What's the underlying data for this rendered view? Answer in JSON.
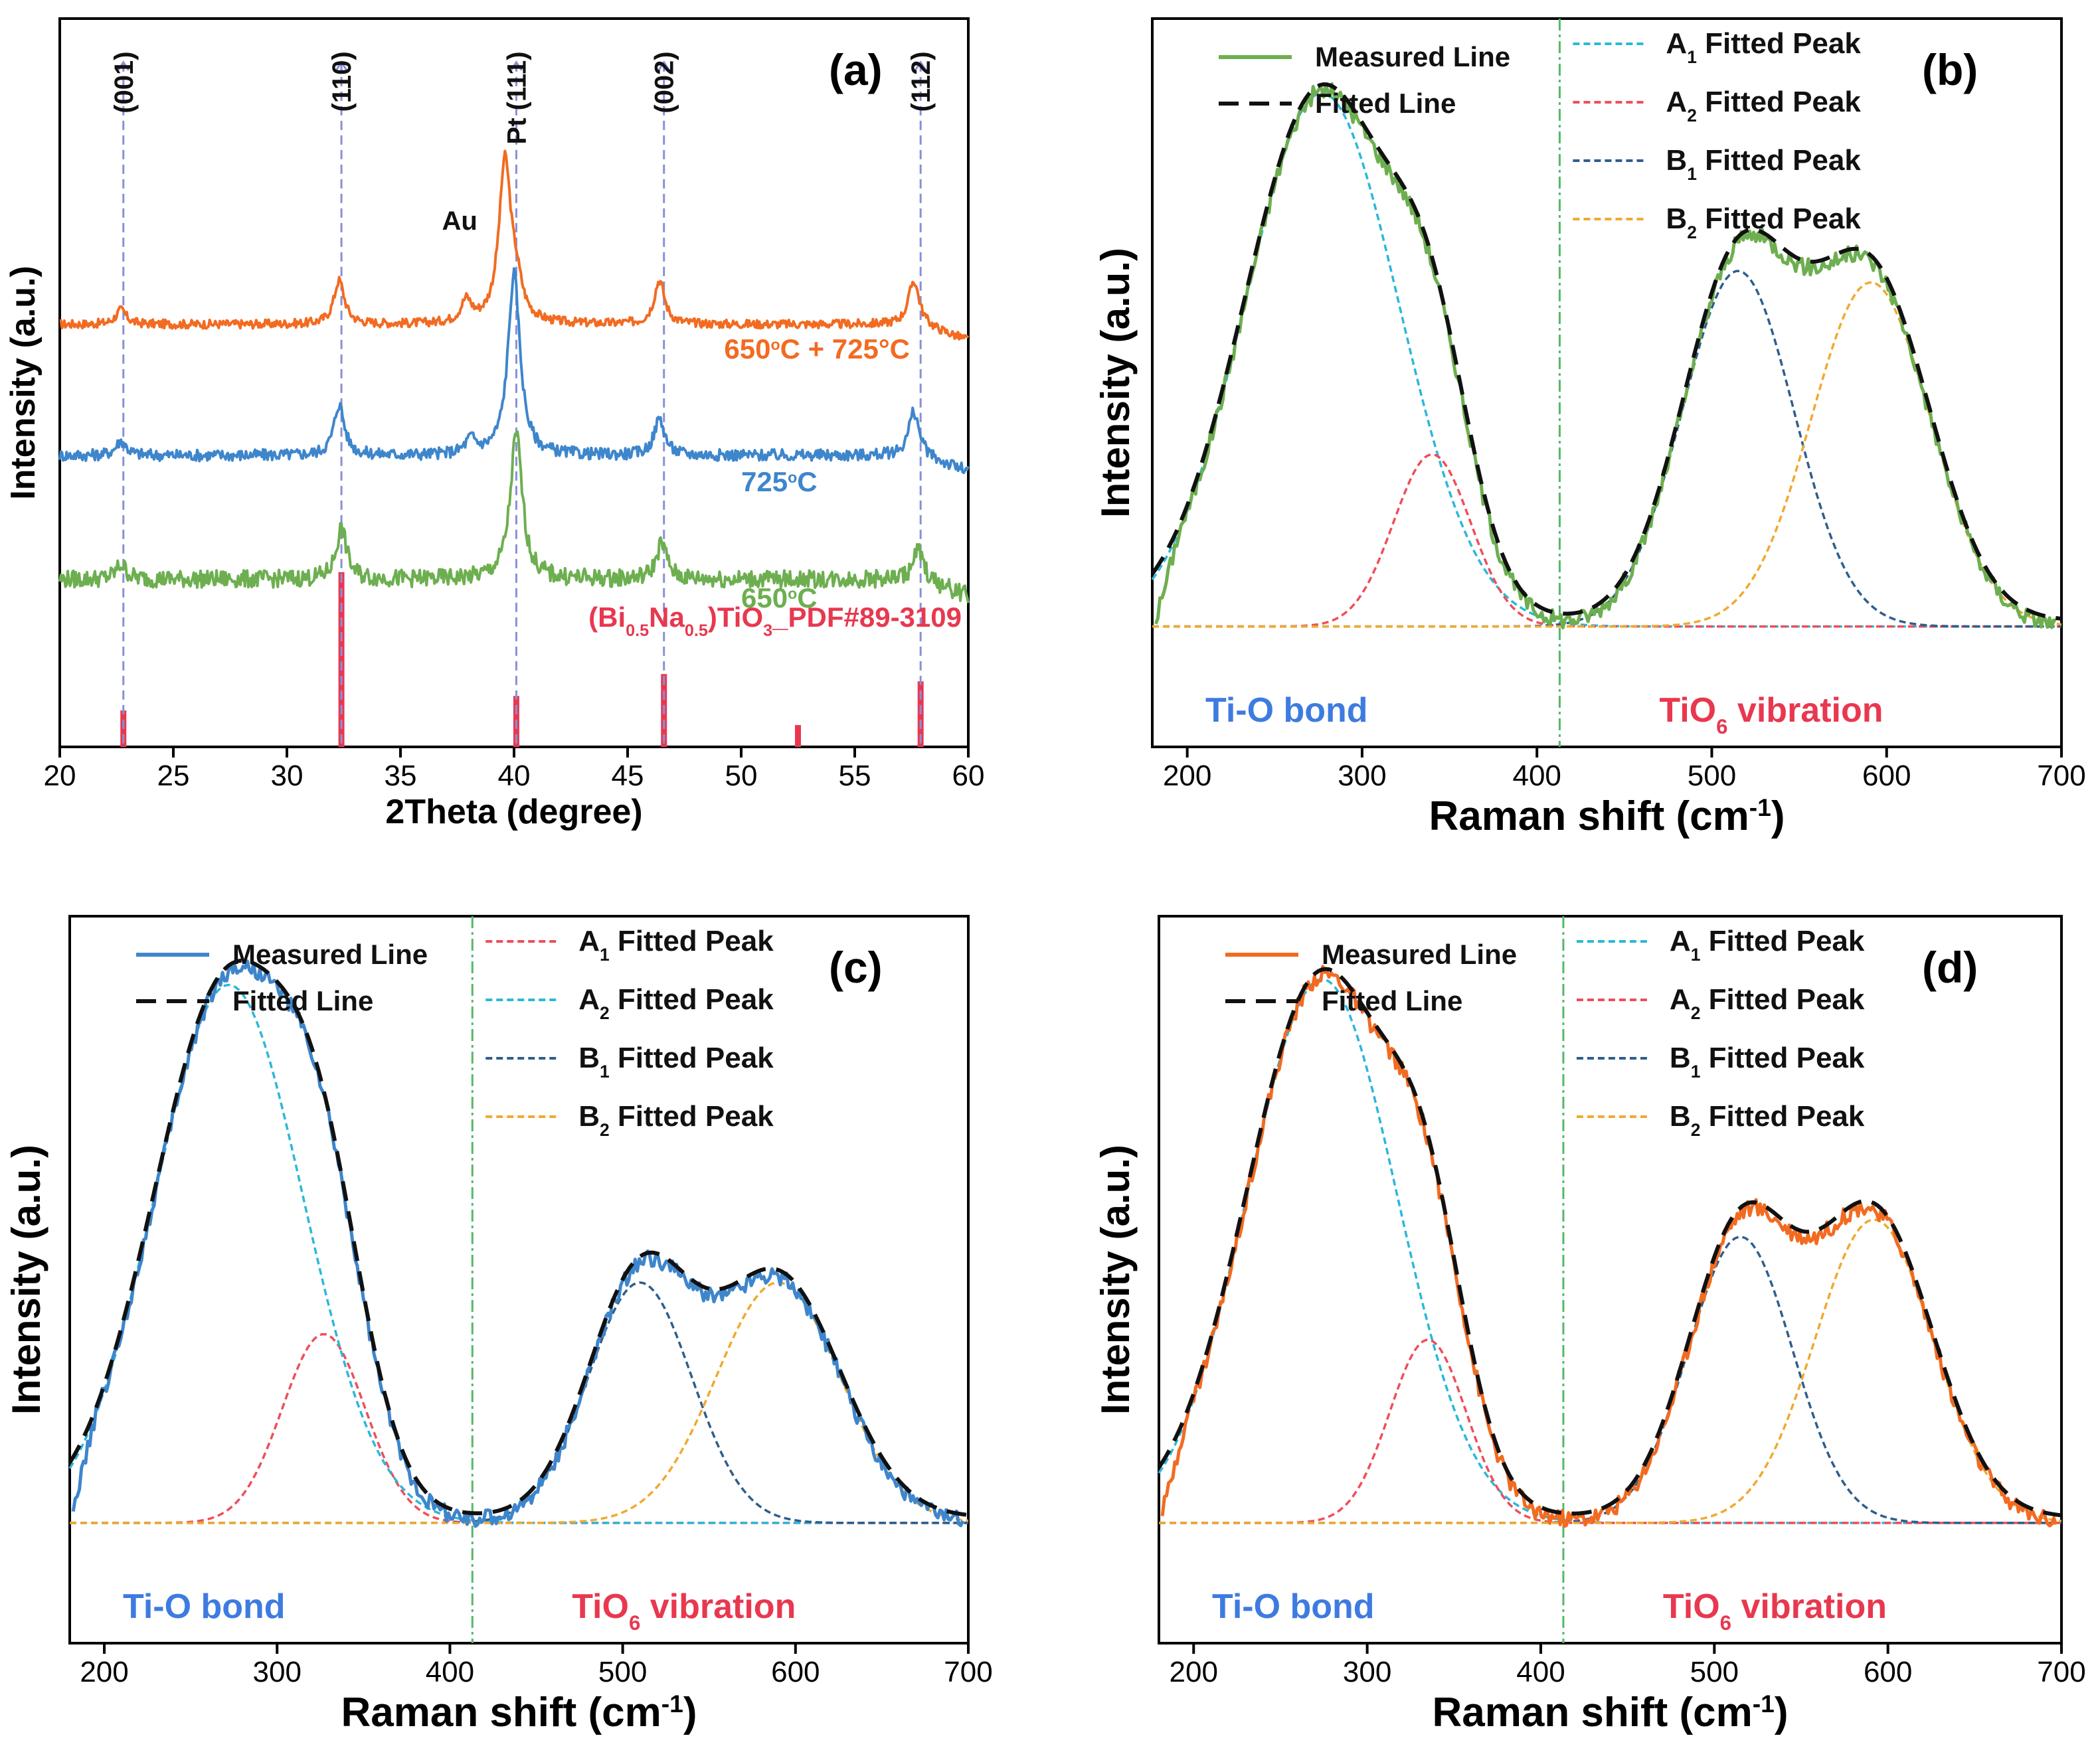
{
  "chart_data": [
    {
      "id": "a",
      "type": "line",
      "panel_label": "(a)",
      "xlabel": "2Theta (degree)",
      "ylabel": "Intensity (a.u.)",
      "xlim": [
        20,
        60
      ],
      "xticks": [
        20,
        25,
        30,
        35,
        40,
        45,
        50,
        55,
        60
      ],
      "colors": {
        "650C+725C": "#F26B21",
        "725C": "#3E86CC",
        "650C": "#6DAF50",
        "reference": "#E8384F",
        "guide": "#8A8FD8"
      },
      "series": [
        {
          "name": "650°C + 725°C",
          "key": "650C+725C",
          "baseline": 0.58,
          "peaks": [
            [
              22.7,
              0.02
            ],
            [
              32.3,
              0.06
            ],
            [
              37.9,
              0.03
            ],
            [
              39.6,
              0.22
            ],
            [
              40.1,
              0.04
            ],
            [
              46.4,
              0.06
            ],
            [
              57.6,
              0.06
            ]
          ],
          "points": [
            [
              20,
              0.58
            ],
            [
              22.7,
              0.6
            ],
            [
              32.3,
              0.64
            ],
            [
              37.9,
              0.61
            ],
            [
              39.6,
              0.8
            ],
            [
              46.4,
              0.64
            ],
            [
              57.6,
              0.64
            ],
            [
              60,
              0.58
            ]
          ]
        },
        {
          "name": "725°C",
          "key": "725C",
          "baseline": 0.4,
          "peaks": [
            [
              22.7,
              0.02
            ],
            [
              32.3,
              0.07
            ],
            [
              38.1,
              0.02
            ],
            [
              40.0,
              0.25
            ],
            [
              46.4,
              0.05
            ],
            [
              57.6,
              0.06
            ]
          ],
          "points": [
            [
              20,
              0.4
            ],
            [
              22.7,
              0.42
            ],
            [
              32.3,
              0.47
            ],
            [
              38.1,
              0.42
            ],
            [
              40.0,
              0.65
            ],
            [
              46.4,
              0.45
            ],
            [
              57.6,
              0.46
            ],
            [
              60,
              0.36
            ]
          ]
        },
        {
          "name": "650°C",
          "key": "650C",
          "baseline": 0.23,
          "peaks": [
            [
              22.7,
              0.02
            ],
            [
              32.4,
              0.07
            ],
            [
              40.1,
              0.2
            ],
            [
              46.5,
              0.05
            ],
            [
              57.8,
              0.04
            ]
          ],
          "points": [
            [
              20,
              0.23
            ],
            [
              22.7,
              0.25
            ],
            [
              32.4,
              0.3
            ],
            [
              40.1,
              0.43
            ],
            [
              46.5,
              0.28
            ],
            [
              57.8,
              0.27
            ],
            [
              60,
              0.2
            ]
          ]
        }
      ],
      "series_labels": [
        {
          "key": "650C+725C",
          "text": "650°C + 725°C"
        },
        {
          "key": "725C",
          "text": "725°C"
        },
        {
          "key": "650C",
          "text": "650°C"
        }
      ],
      "reference_name": "(Bi0.5Na0.5)TiO3_PDF#89-3109",
      "reference_sticks": [
        [
          22.8,
          0.05
        ],
        [
          32.4,
          0.24
        ],
        [
          40.1,
          0.07
        ],
        [
          46.6,
          0.1
        ],
        [
          52.5,
          0.03
        ],
        [
          57.9,
          0.09
        ]
      ],
      "guide_lines": [
        {
          "x": 22.8,
          "label": "(001)"
        },
        {
          "x": 32.4,
          "label": "(110)"
        },
        {
          "x": 40.1,
          "label": "Pt (111)"
        },
        {
          "x": 46.6,
          "label": "(002)"
        },
        {
          "x": 57.9,
          "label": "(112)"
        }
      ],
      "annotations": [
        {
          "x": 37.9,
          "text": "Au"
        }
      ]
    },
    {
      "id": "b",
      "type": "line",
      "panel_label": "(b)",
      "xlabel": "Raman shift (cm-1)",
      "ylabel": "Intensity (a.u.)",
      "xlim": [
        180,
        700
      ],
      "xticks": [
        200,
        300,
        400,
        500,
        600,
        700
      ],
      "divider_x": 413,
      "region_labels": {
        "left": "Ti-O bond",
        "right": "TiO6 vibration"
      },
      "measured_color": "#6DAF50",
      "series": [
        {
          "name": "Measured Line",
          "style": "solid"
        },
        {
          "name": "Fitted Line",
          "style": "dashed-black"
        },
        {
          "name": "A1 Fitted Peak",
          "center": 277,
          "height": 0.93,
          "width": 44,
          "color": "#2BB8D8"
        },
        {
          "name": "A2 Fitted Peak",
          "center": 340,
          "height": 0.3,
          "width": 22,
          "color": "#EF4E5A"
        },
        {
          "name": "B1 Fitted Peak",
          "center": 515,
          "height": 0.62,
          "width": 32,
          "color": "#2E5E8C"
        },
        {
          "name": "B2 Fitted Peak",
          "center": 591,
          "height": 0.6,
          "width": 34,
          "color": "#F0A930"
        }
      ],
      "legend": [
        {
          "key": "measured",
          "text": "Measured Line"
        },
        {
          "key": "fitted",
          "text": "Fitted Line"
        },
        {
          "key": "A1",
          "main": "A",
          "sub": "1",
          "rest": " Fitted Peak"
        },
        {
          "key": "A2",
          "main": "A",
          "sub": "2",
          "rest": " Fitted Peak"
        },
        {
          "key": "B1",
          "main": "B",
          "sub": "1",
          "rest": " Fitted Peak"
        },
        {
          "key": "B2",
          "main": "B",
          "sub": "2",
          "rest": " Fitted Peak"
        }
      ]
    },
    {
      "id": "c",
      "type": "line",
      "panel_label": "(c)",
      "xlabel": "Raman shift (cm-1)",
      "ylabel": "Intensity (a.u.)",
      "xlim": [
        180,
        700
      ],
      "xticks": [
        200,
        300,
        400,
        500,
        600,
        700
      ],
      "divider_x": 413,
      "region_labels": {
        "left": "Ti-O bond",
        "right": "TiO6 vibration"
      },
      "measured_color": "#3E86CC",
      "series": [
        {
          "name": "Measured Line",
          "style": "solid"
        },
        {
          "name": "Fitted Line",
          "style": "dashed-black"
        },
        {
          "name": "A1 Fitted Peak",
          "center": 327,
          "height": 0.33,
          "width": 24,
          "color": "#EF4E5A"
        },
        {
          "name": "A2 Fitted Peak",
          "center": 272,
          "height": 0.94,
          "width": 43,
          "color": "#2BB8D8"
        },
        {
          "name": "B1 Fitted Peak",
          "center": 510,
          "height": 0.42,
          "width": 30,
          "color": "#2E5E8C"
        },
        {
          "name": "B2 Fitted Peak",
          "center": 590,
          "height": 0.42,
          "width": 36,
          "color": "#F0A930"
        }
      ],
      "legend": [
        {
          "key": "measured",
          "text": "Measured Line"
        },
        {
          "key": "fitted",
          "text": "Fitted Line"
        },
        {
          "key": "A1",
          "main": "A",
          "sub": "1",
          "rest": " Fitted Peak"
        },
        {
          "key": "A2",
          "main": "A",
          "sub": "2",
          "rest": " Fitted Peak"
        },
        {
          "key": "B1",
          "main": "B",
          "sub": "1",
          "rest": " Fitted Peak"
        },
        {
          "key": "B2",
          "main": "B",
          "sub": "2",
          "rest": " Fitted Peak"
        }
      ]
    },
    {
      "id": "d",
      "type": "line",
      "panel_label": "(d)",
      "xlabel": "Raman shift (cm-1)",
      "ylabel": "Intensity (a.u.)",
      "xlim": [
        180,
        700
      ],
      "xticks": [
        200,
        300,
        400,
        500,
        600,
        700
      ],
      "divider_x": 413,
      "region_labels": {
        "left": "Ti-O bond",
        "right": "TiO6 vibration"
      },
      "measured_color": "#F26B21",
      "series": [
        {
          "name": "Measured Line",
          "style": "solid"
        },
        {
          "name": "Fitted Line",
          "style": "dashed-black"
        },
        {
          "name": "A1 Fitted Peak",
          "center": 274,
          "height": 0.95,
          "width": 43,
          "color": "#2BB8D8"
        },
        {
          "name": "A2 Fitted Peak",
          "center": 335,
          "height": 0.32,
          "width": 22,
          "color": "#EF4E5A"
        },
        {
          "name": "B1 Fitted Peak",
          "center": 515,
          "height": 0.5,
          "width": 30,
          "color": "#2E5E8C"
        },
        {
          "name": "B2 Fitted Peak",
          "center": 592,
          "height": 0.53,
          "width": 34,
          "color": "#F0A930"
        }
      ],
      "legend": [
        {
          "key": "measured",
          "text": "Measured Line"
        },
        {
          "key": "fitted",
          "text": "Fitted Line"
        },
        {
          "key": "A1",
          "main": "A",
          "sub": "1",
          "rest": " Fitted Peak"
        },
        {
          "key": "A2",
          "main": "A",
          "sub": "2",
          "rest": " Fitted Peak"
        },
        {
          "key": "B1",
          "main": "B",
          "sub": "1",
          "rest": " Fitted Peak"
        },
        {
          "key": "B2",
          "main": "B",
          "sub": "2",
          "rest": " Fitted Peak"
        }
      ]
    }
  ]
}
